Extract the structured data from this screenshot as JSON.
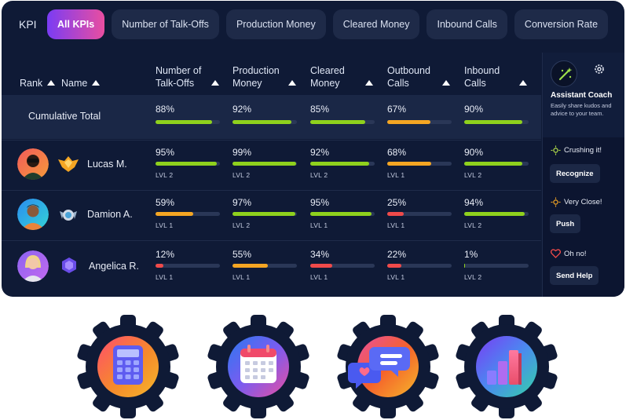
{
  "header": {
    "kpi_label": "KPI",
    "tabs": [
      "All KPIs",
      "Number of Talk-Offs",
      "Production Money",
      "Cleared Money",
      "Inbound Calls",
      "Conversion Rate"
    ]
  },
  "table": {
    "columns": {
      "rank": "Rank",
      "name": "Name",
      "talkoffs": [
        "Number of",
        "Talk-Offs"
      ],
      "production": [
        "Production",
        "Money"
      ],
      "cleared": [
        "Cleared",
        "Money"
      ],
      "outbound": [
        "Outbound",
        "Calls"
      ],
      "inbound": [
        "Inbound",
        "Calls"
      ]
    },
    "cumulative": {
      "label": "Cumulative Total",
      "values": [
        "88%",
        "92%",
        "85%",
        "67%",
        "90%"
      ],
      "levels": [
        0.88,
        0.92,
        0.85,
        0.67,
        0.9
      ],
      "colors": [
        "#8fd11d",
        "#8fd11d",
        "#8fd11d",
        "#f5a623",
        "#8fd11d"
      ]
    },
    "rows": [
      {
        "name": "Lucas M.",
        "values": [
          "95%",
          "99%",
          "92%",
          "68%",
          "90%"
        ],
        "levels": [
          0.95,
          0.99,
          0.92,
          0.68,
          0.9
        ],
        "colors": [
          "#8fd11d",
          "#8fd11d",
          "#8fd11d",
          "#f5a623",
          "#8fd11d"
        ],
        "lvl": [
          "LVL 2",
          "LVL 2",
          "LVL 2",
          "LVL 1",
          "LVL 2"
        ]
      },
      {
        "name": "Damion A.",
        "values": [
          "59%",
          "97%",
          "95%",
          "25%",
          "94%"
        ],
        "levels": [
          0.59,
          0.97,
          0.95,
          0.25,
          0.94
        ],
        "colors": [
          "#f5a623",
          "#8fd11d",
          "#8fd11d",
          "#ef4a4a",
          "#8fd11d"
        ],
        "lvl": [
          "LVL 1",
          "LVL 2",
          "LVL 1",
          "LVL 1",
          "LVL 2"
        ]
      },
      {
        "name": "Angelica R.",
        "values": [
          "12%",
          "55%",
          "34%",
          "22%",
          "1%"
        ],
        "levels": [
          0.12,
          0.55,
          0.34,
          0.22,
          0.01
        ],
        "colors": [
          "#ef4a4a",
          "#f5a623",
          "#ef4a4a",
          "#ef4a4a",
          "#8fd11d"
        ],
        "lvl": [
          "LVL 1",
          "LVL 1",
          "LVL 1",
          "LVL 1",
          "LVL 2"
        ]
      }
    ]
  },
  "coach": {
    "title": "Assistant Coach",
    "subtitle": "Easily share kudos and advice to your team.",
    "items": [
      {
        "status": "Crushing it!",
        "button": "Recognize",
        "icon": "sparkle-icon"
      },
      {
        "status": "Very Close!",
        "button": "Push",
        "icon": "sparkle-icon"
      },
      {
        "status": "Oh no!",
        "button": "Send Help",
        "icon": "heart-icon"
      }
    ]
  },
  "feature_icons": [
    "calculator-icon",
    "calendar-icon",
    "chat-bubbles-icon",
    "bar-chart-icon"
  ]
}
